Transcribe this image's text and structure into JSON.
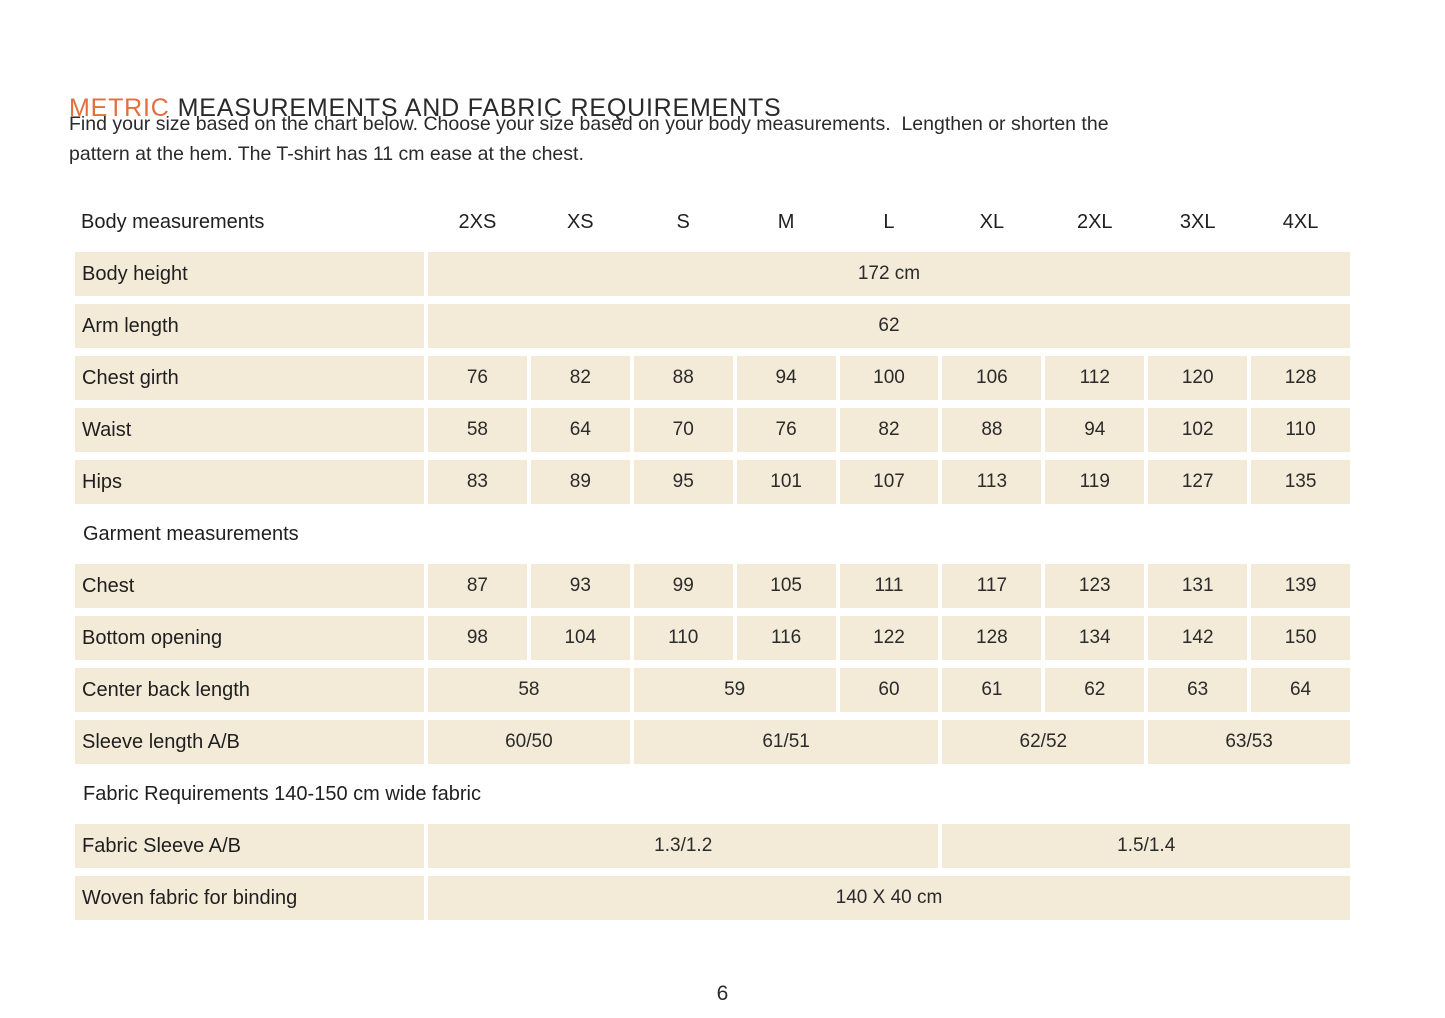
{
  "page": {
    "title_accent": "METRIC",
    "title_rest": "MEASUREMENTS AND FABRIC REQUIREMENTS",
    "intro_lines": [
      "Find your size based on the chart below. Choose your size based on your body measurements.  Lengthen or shorten the",
      "pattern at the hem. The T-shirt has 11 cm ease at the chest."
    ],
    "page_number": "6"
  },
  "colors": {
    "accent_orange": "#e2703d",
    "cell_beige": "#f3ead8",
    "text_dark": "#242424"
  },
  "table": {
    "header_label": "Body measurements",
    "sizes": [
      "2XS",
      "XS",
      "S",
      "M",
      "L",
      "XL",
      "2XL",
      "3XL",
      "4XL"
    ],
    "sections": [
      {
        "title": "",
        "rows": [
          {
            "label": "Body height",
            "cells": [
              {
                "span": 9,
                "value": "172 cm"
              }
            ]
          },
          {
            "label": "Arm length",
            "cells": [
              {
                "span": 9,
                "value": "62"
              }
            ]
          },
          {
            "label": "Chest girth",
            "cells": [
              {
                "span": 1,
                "value": "76"
              },
              {
                "span": 1,
                "value": "82"
              },
              {
                "span": 1,
                "value": "88"
              },
              {
                "span": 1,
                "value": "94"
              },
              {
                "span": 1,
                "value": "100"
              },
              {
                "span": 1,
                "value": "106"
              },
              {
                "span": 1,
                "value": "112"
              },
              {
                "span": 1,
                "value": "120"
              },
              {
                "span": 1,
                "value": "128"
              }
            ]
          },
          {
            "label": "Waist",
            "cells": [
              {
                "span": 1,
                "value": "58"
              },
              {
                "span": 1,
                "value": "64"
              },
              {
                "span": 1,
                "value": "70"
              },
              {
                "span": 1,
                "value": "76"
              },
              {
                "span": 1,
                "value": "82"
              },
              {
                "span": 1,
                "value": "88"
              },
              {
                "span": 1,
                "value": "94"
              },
              {
                "span": 1,
                "value": "102"
              },
              {
                "span": 1,
                "value": "110"
              }
            ]
          },
          {
            "label": "Hips",
            "cells": [
              {
                "span": 1,
                "value": "83"
              },
              {
                "span": 1,
                "value": "89"
              },
              {
                "span": 1,
                "value": "95"
              },
              {
                "span": 1,
                "value": "101"
              },
              {
                "span": 1,
                "value": "107"
              },
              {
                "span": 1,
                "value": "113"
              },
              {
                "span": 1,
                "value": "119"
              },
              {
                "span": 1,
                "value": "127"
              },
              {
                "span": 1,
                "value": "135"
              }
            ]
          }
        ]
      },
      {
        "title": "Garment measurements",
        "rows": [
          {
            "label": "Chest",
            "cells": [
              {
                "span": 1,
                "value": "87"
              },
              {
                "span": 1,
                "value": "93"
              },
              {
                "span": 1,
                "value": "99"
              },
              {
                "span": 1,
                "value": "105"
              },
              {
                "span": 1,
                "value": "111"
              },
              {
                "span": 1,
                "value": "117"
              },
              {
                "span": 1,
                "value": "123"
              },
              {
                "span": 1,
                "value": "131"
              },
              {
                "span": 1,
                "value": "139"
              }
            ]
          },
          {
            "label": "Bottom opening",
            "cells": [
              {
                "span": 1,
                "value": "98"
              },
              {
                "span": 1,
                "value": "104"
              },
              {
                "span": 1,
                "value": "110"
              },
              {
                "span": 1,
                "value": "116"
              },
              {
                "span": 1,
                "value": "122"
              },
              {
                "span": 1,
                "value": "128"
              },
              {
                "span": 1,
                "value": "134"
              },
              {
                "span": 1,
                "value": "142"
              },
              {
                "span": 1,
                "value": "150"
              }
            ]
          },
          {
            "label": "Center back length",
            "cells": [
              {
                "span": 2,
                "value": "58"
              },
              {
                "span": 2,
                "value": "59"
              },
              {
                "span": 1,
                "value": "60"
              },
              {
                "span": 1,
                "value": "61"
              },
              {
                "span": 1,
                "value": "62"
              },
              {
                "span": 1,
                "value": "63"
              },
              {
                "span": 1,
                "value": "64"
              }
            ]
          },
          {
            "label": "Sleeve length A/B",
            "cells": [
              {
                "span": 2,
                "value": "60/50"
              },
              {
                "span": 3,
                "value": "61/51"
              },
              {
                "span": 2,
                "value": "62/52"
              },
              {
                "span": 2,
                "value": "63/53"
              }
            ]
          }
        ]
      },
      {
        "title": "Fabric Requirements 140-150 cm wide fabric",
        "rows": [
          {
            "label": "Fabric Sleeve A/B",
            "cells": [
              {
                "span": 5,
                "value": "1.3/1.2"
              },
              {
                "span": 4,
                "value": "1.5/1.4"
              }
            ]
          },
          {
            "label": "Woven fabric for binding",
            "cells": [
              {
                "span": 9,
                "value": "140 X 40 cm"
              }
            ]
          }
        ]
      }
    ]
  }
}
